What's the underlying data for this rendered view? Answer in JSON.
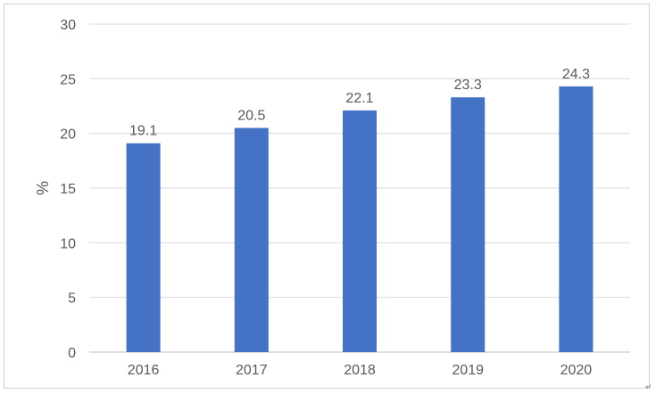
{
  "chart_data": {
    "type": "bar",
    "categories": [
      "2016",
      "2017",
      "2018",
      "2019",
      "2020"
    ],
    "values": [
      19.1,
      20.5,
      22.1,
      23.3,
      24.3
    ],
    "data_labels": [
      "19.1",
      "20.5",
      "22.1",
      "23.3",
      "24.3"
    ],
    "title": "",
    "xlabel": "",
    "ylabel": "%",
    "ylim": [
      0,
      30
    ],
    "yticks": [
      "0",
      "5",
      "10",
      "15",
      "20",
      "25",
      "30"
    ],
    "grid": true,
    "legend": "none",
    "bar_color": "#4472C4",
    "grid_color": "#d9d9d9",
    "axis_color": "#bfbfbf"
  },
  "corner_icon": "arrow-corner-icon"
}
